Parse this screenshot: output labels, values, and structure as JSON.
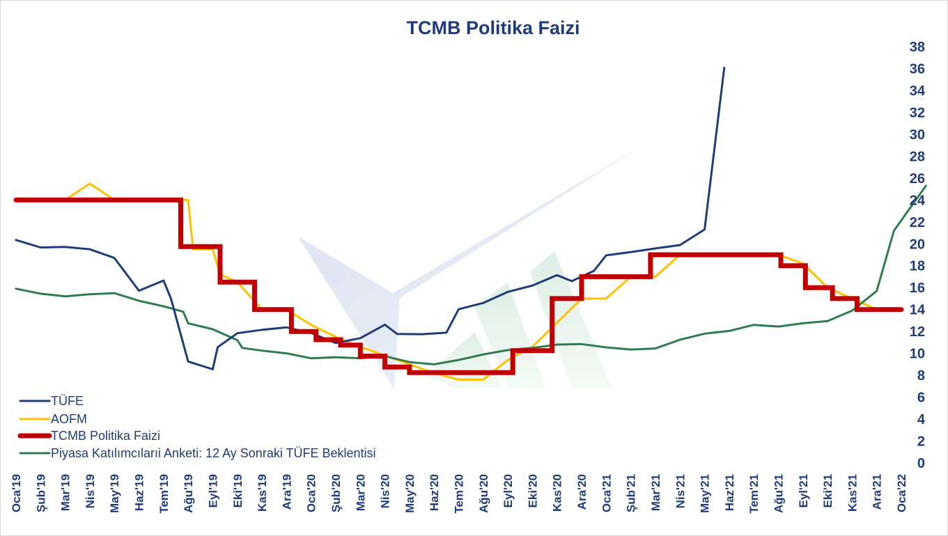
{
  "chart_data": {
    "type": "line",
    "title": "TCMB Politika Faizi",
    "xlabel": "",
    "ylabel": "",
    "ylim": [
      0,
      38
    ],
    "yticks": [
      0,
      2,
      4,
      6,
      8,
      10,
      12,
      14,
      16,
      18,
      20,
      22,
      24,
      26,
      28,
      30,
      32,
      34,
      36,
      38
    ],
    "grid": false,
    "legend_position": "bottom-left",
    "x_labels": [
      "Oca'19",
      "Şub'19",
      "Mar'19",
      "Nis'19",
      "May'19",
      "Haz'19",
      "Tem'19",
      "Ağu'19",
      "Eyl'19",
      "Eki'19",
      "Kas'19",
      "Ara'19",
      "Oca'20",
      "Şub'20",
      "Mar'20",
      "Nis'20",
      "May'20",
      "Haz'20",
      "Tem'20",
      "Ağu'20",
      "Eyl'20",
      "Eki'20",
      "Kas'20",
      "Ara'20",
      "Oca'21",
      "Şub'21",
      "Mar'21",
      "Nis'21",
      "May'21",
      "Haz'21",
      "Tem'21",
      "Ağu'21",
      "Eyl'21",
      "Eki'21",
      "Kas'21",
      "Ara'21",
      "Oca'22"
    ],
    "series": [
      {
        "name": "TÜFE",
        "color": "#1f3b7a",
        "step": false,
        "values": [
          [
            0.0,
            20.35
          ],
          [
            1.0,
            19.67
          ],
          [
            2.0,
            19.71
          ],
          [
            3.0,
            19.5
          ],
          [
            4.0,
            18.71
          ],
          [
            5.0,
            15.72
          ],
          [
            6.0,
            16.65
          ],
          [
            6.3,
            15.01
          ],
          [
            7.0,
            9.26
          ],
          [
            8.0,
            8.55
          ],
          [
            8.2,
            10.56
          ],
          [
            9.0,
            11.84
          ],
          [
            10.0,
            12.15
          ],
          [
            11.0,
            12.37
          ],
          [
            12.0,
            11.86
          ],
          [
            13.0,
            10.94
          ],
          [
            14.0,
            11.39
          ],
          [
            15.0,
            12.62
          ],
          [
            15.5,
            11.77
          ],
          [
            16.5,
            11.75
          ],
          [
            17.5,
            11.89
          ],
          [
            18.0,
            14.03
          ],
          [
            19.0,
            14.6
          ],
          [
            20.0,
            15.61
          ],
          [
            21.0,
            16.19
          ],
          [
            22.0,
            17.14
          ],
          [
            22.6,
            16.59
          ],
          [
            23.5,
            17.53
          ],
          [
            24.0,
            18.95
          ],
          [
            25.0,
            19.25
          ],
          [
            26.0,
            19.58
          ],
          [
            27.0,
            19.89
          ],
          [
            28.0,
            21.31
          ],
          [
            28.8,
            36.08
          ]
        ]
      },
      {
        "name": "AOFM",
        "color": "#ffc000",
        "step": false,
        "values": [
          [
            0.0,
            24.0
          ],
          [
            2.0,
            24.0
          ],
          [
            3.0,
            25.5
          ],
          [
            4.0,
            24.0
          ],
          [
            7.0,
            24.0
          ],
          [
            7.2,
            19.5
          ],
          [
            8.0,
            19.5
          ],
          [
            8.3,
            17.2
          ],
          [
            9.0,
            16.5
          ],
          [
            10.0,
            14.0
          ],
          [
            11.0,
            14.0
          ],
          [
            12.0,
            12.6
          ],
          [
            13.0,
            11.5
          ],
          [
            14.0,
            10.6
          ],
          [
            15.0,
            9.8
          ],
          [
            16.0,
            9.0
          ],
          [
            17.0,
            8.2
          ],
          [
            18.0,
            7.6
          ],
          [
            19.0,
            7.6
          ],
          [
            20.0,
            9.4
          ],
          [
            21.0,
            10.6
          ],
          [
            22.0,
            12.8
          ],
          [
            23.0,
            15.0
          ],
          [
            24.0,
            15.0
          ],
          [
            25.0,
            17.0
          ],
          [
            26.0,
            17.0
          ],
          [
            27.0,
            19.0
          ],
          [
            28.0,
            19.0
          ],
          [
            29.0,
            19.0
          ],
          [
            30.0,
            19.0
          ],
          [
            31.0,
            19.0
          ],
          [
            32.0,
            18.2
          ],
          [
            33.0,
            16.0
          ],
          [
            34.0,
            15.0
          ],
          [
            35.0,
            14.0
          ],
          [
            36.0,
            14.0
          ]
        ]
      },
      {
        "name": "TCMB Politika Faizi",
        "color": "#c00000",
        "step": true,
        "values": [
          [
            0.0,
            24.0
          ],
          [
            6.7,
            24.0
          ],
          [
            6.7,
            19.75
          ],
          [
            8.3,
            19.75
          ],
          [
            8.3,
            16.5
          ],
          [
            9.7,
            16.5
          ],
          [
            9.7,
            14.0
          ],
          [
            11.2,
            14.0
          ],
          [
            11.2,
            12.0
          ],
          [
            12.2,
            12.0
          ],
          [
            12.2,
            11.25
          ],
          [
            13.2,
            11.25
          ],
          [
            13.2,
            10.75
          ],
          [
            14.0,
            10.75
          ],
          [
            14.0,
            9.75
          ],
          [
            15.0,
            9.75
          ],
          [
            15.0,
            8.75
          ],
          [
            16.0,
            8.75
          ],
          [
            16.0,
            8.25
          ],
          [
            20.2,
            8.25
          ],
          [
            20.2,
            10.25
          ],
          [
            21.8,
            10.25
          ],
          [
            21.8,
            15.0
          ],
          [
            23.0,
            15.0
          ],
          [
            23.0,
            17.0
          ],
          [
            25.8,
            17.0
          ],
          [
            25.8,
            19.0
          ],
          [
            31.1,
            19.0
          ],
          [
            31.1,
            18.0
          ],
          [
            32.1,
            18.0
          ],
          [
            32.1,
            16.0
          ],
          [
            33.2,
            16.0
          ],
          [
            33.2,
            15.0
          ],
          [
            34.2,
            15.0
          ],
          [
            34.2,
            14.0
          ],
          [
            36.0,
            14.0
          ]
        ]
      },
      {
        "name": "Piyasa Katılımcılarıi Anketi: 12 Ay Sonraki TÜFE Beklentisi",
        "color": "#2e7d4f",
        "step": false,
        "values": [
          [
            0.0,
            15.9
          ],
          [
            1.0,
            15.45
          ],
          [
            2.0,
            15.2
          ],
          [
            3.0,
            15.4
          ],
          [
            4.0,
            15.5
          ],
          [
            5.0,
            14.8
          ],
          [
            6.0,
            14.3
          ],
          [
            6.8,
            13.8
          ],
          [
            7.0,
            12.75
          ],
          [
            8.0,
            12.2
          ],
          [
            9.0,
            11.2
          ],
          [
            9.2,
            10.5
          ],
          [
            10.0,
            10.25
          ],
          [
            11.0,
            10.0
          ],
          [
            12.0,
            9.55
          ],
          [
            13.0,
            9.65
          ],
          [
            14.0,
            9.55
          ],
          [
            15.0,
            9.75
          ],
          [
            16.0,
            9.2
          ],
          [
            17.0,
            9.0
          ],
          [
            18.0,
            9.4
          ],
          [
            19.0,
            9.9
          ],
          [
            20.0,
            10.3
          ],
          [
            21.0,
            10.5
          ],
          [
            22.0,
            10.8
          ],
          [
            23.0,
            10.85
          ],
          [
            24.0,
            10.55
          ],
          [
            25.0,
            10.35
          ],
          [
            26.0,
            10.45
          ],
          [
            27.0,
            11.25
          ],
          [
            28.0,
            11.8
          ],
          [
            29.0,
            12.05
          ],
          [
            30.0,
            12.6
          ],
          [
            31.0,
            12.45
          ],
          [
            32.0,
            12.75
          ],
          [
            33.0,
            12.95
          ],
          [
            34.0,
            13.9
          ],
          [
            35.0,
            15.7
          ],
          [
            35.7,
            21.2
          ],
          [
            37.0,
            25.3
          ]
        ]
      }
    ]
  }
}
